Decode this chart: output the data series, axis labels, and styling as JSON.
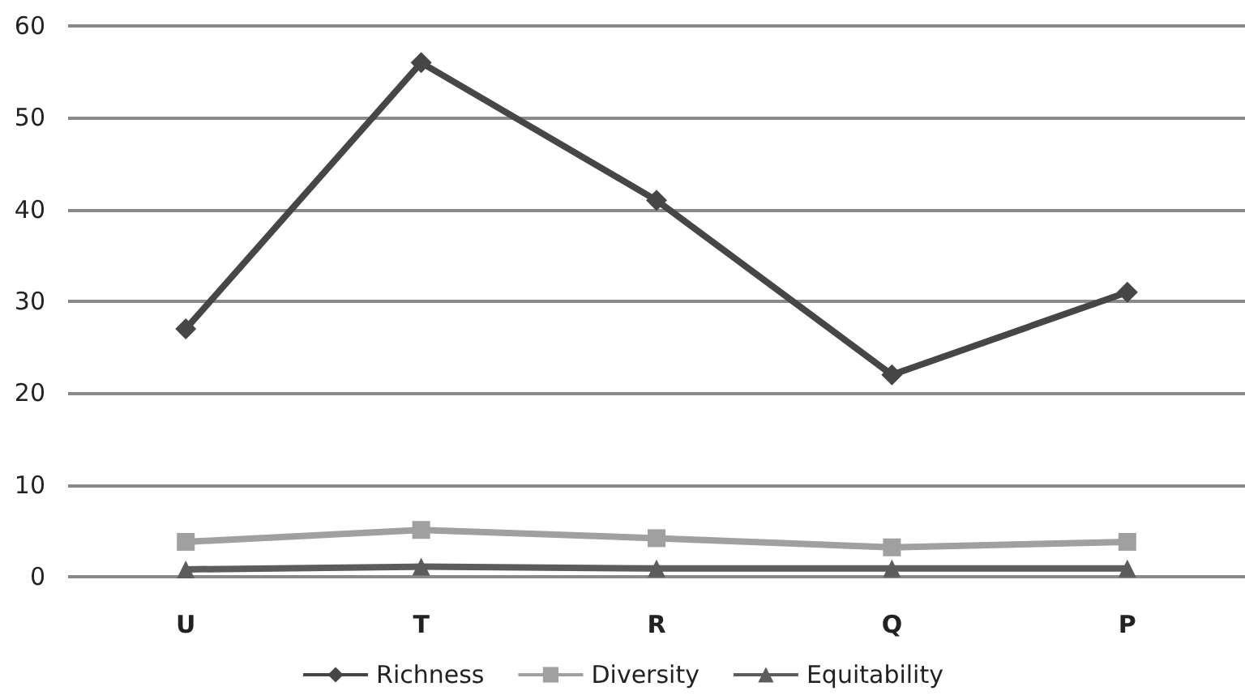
{
  "chart_data": {
    "type": "line",
    "categories": [
      "U",
      "T",
      "R",
      "Q",
      "P"
    ],
    "series": [
      {
        "name": "Richness",
        "color": "#464646",
        "marker": "diamond",
        "values": [
          27,
          56,
          41,
          22,
          31
        ]
      },
      {
        "name": "Diversity",
        "color": "#a0a0a0",
        "marker": "square",
        "values": [
          3.8,
          5.1,
          4.2,
          3.2,
          3.8
        ]
      },
      {
        "name": "Equitability",
        "color": "#5c5c5c",
        "marker": "triangle",
        "values": [
          0.8,
          1.1,
          0.9,
          0.9,
          0.9
        ]
      }
    ],
    "ylim": [
      0,
      60
    ],
    "yticks": [
      0,
      10,
      20,
      30,
      40,
      50,
      60
    ],
    "grid": "y",
    "legend": "bottom",
    "line_style": "solid"
  }
}
